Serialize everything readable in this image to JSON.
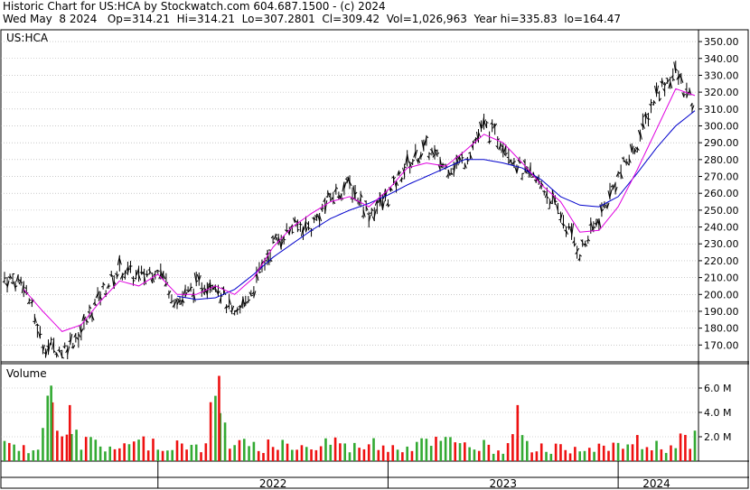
{
  "header": {
    "line1": "Historic Chart for US:HCA by Stockwatch.com 604.687.1500 - (c) 2024",
    "line2": "Wed May  8 2024   Op=314.21  Hi=314.21  Lo=307.2801  Cl=309.42  Vol=1,026,963  Year hi=335.83  lo=164.47"
  },
  "colors": {
    "price_bar": "#000000",
    "ma_short": "#e000e0",
    "ma_long": "#0000cc",
    "vol_up": "#33aa33",
    "vol_down": "#ee1111",
    "grid": "#aaaaaa"
  },
  "chart_data": [
    {
      "type": "line",
      "panel": "price",
      "label": "US:HCA",
      "y_ticks": [
        "170.00",
        "180.00",
        "190.00",
        "200.00",
        "210.00",
        "220.00",
        "230.00",
        "240.00",
        "250.00",
        "260.00",
        "270.00",
        "280.00",
        "290.00",
        "300.00",
        "310.00",
        "320.00",
        "330.00",
        "340.00",
        "350.00"
      ],
      "ylim": [
        160,
        357
      ],
      "x_labels": [
        "2022",
        "2023",
        "2024"
      ],
      "x_range": [
        "2021-05",
        "2024-05"
      ],
      "series": [
        {
          "style": "price-bars",
          "x": [
            "2021-05",
            "2021-06",
            "2021-07",
            "2021-08",
            "2021-09",
            "2021-10",
            "2021-11",
            "2021-12",
            "2022-01",
            "2022-02",
            "2022-03",
            "2022-04",
            "2022-05",
            "2022-06",
            "2022-07",
            "2022-08",
            "2022-09",
            "2022-10",
            "2022-11",
            "2022-12",
            "2023-01",
            "2023-02",
            "2023-03",
            "2023-04",
            "2023-05",
            "2023-06",
            "2023-07",
            "2023-08",
            "2023-09",
            "2023-10",
            "2023-11",
            "2023-12",
            "2024-01",
            "2024-02",
            "2024-03",
            "2024-04",
            "2024-05"
          ],
          "values": [
            210,
            207,
            170,
            167,
            178,
            200,
            215,
            210,
            216,
            195,
            205,
            208,
            185,
            205,
            230,
            240,
            240,
            258,
            265,
            248,
            258,
            277,
            287,
            275,
            280,
            300,
            290,
            273,
            265,
            247,
            225,
            245,
            270,
            290,
            320,
            332,
            309.42
          ]
        },
        {
          "style": "ma-short",
          "x": [
            "2021-06",
            "2021-07",
            "2021-08",
            "2021-09",
            "2021-10",
            "2021-11",
            "2021-12",
            "2022-01",
            "2022-02",
            "2022-03",
            "2022-04",
            "2022-05",
            "2022-06",
            "2022-07",
            "2022-08",
            "2022-09",
            "2022-10",
            "2022-11",
            "2022-12",
            "2023-01",
            "2023-02",
            "2023-03",
            "2023-04",
            "2023-05",
            "2023-06",
            "2023-07",
            "2023-08",
            "2023-09",
            "2023-10",
            "2023-11",
            "2023-12",
            "2024-01",
            "2024-02",
            "2024-03",
            "2024-04",
            "2024-05"
          ],
          "values": [
            203,
            190,
            178,
            182,
            196,
            208,
            205,
            212,
            200,
            200,
            205,
            200,
            210,
            228,
            240,
            248,
            255,
            258,
            252,
            262,
            275,
            278,
            276,
            285,
            295,
            290,
            278,
            265,
            255,
            237,
            238,
            252,
            274,
            298,
            322,
            318
          ]
        },
        {
          "style": "ma-long",
          "x": [
            "2022-02",
            "2022-03",
            "2022-04",
            "2022-05",
            "2022-06",
            "2022-07",
            "2022-08",
            "2022-09",
            "2022-10",
            "2022-11",
            "2022-12",
            "2023-01",
            "2023-02",
            "2023-03",
            "2023-04",
            "2023-05",
            "2023-06",
            "2023-07",
            "2023-08",
            "2023-09",
            "2023-10",
            "2023-11",
            "2023-12",
            "2024-01",
            "2024-02",
            "2024-03",
            "2024-04",
            "2024-05"
          ],
          "values": [
            199,
            197,
            198,
            203,
            212,
            222,
            230,
            238,
            245,
            250,
            254,
            259,
            265,
            270,
            275,
            280,
            280,
            278,
            275,
            268,
            258,
            253,
            252,
            258,
            272,
            287,
            300,
            309
          ]
        }
      ]
    },
    {
      "type": "bar",
      "panel": "volume",
      "label": "Volume",
      "y_ticks": [
        "2.0 M",
        "4.0 M",
        "6.0 M"
      ],
      "ylim": [
        0,
        8
      ],
      "x_range": [
        "2021-05",
        "2024-05"
      ],
      "values_millions": [
        2.0,
        1.6,
        6.2,
        4.6,
        2.3,
        1.9,
        2.0,
        2.5,
        1.9,
        2.4,
        1.7,
        7.0,
        2.1,
        1.8,
        2.2,
        2.0,
        1.7,
        2.6,
        1.8,
        2.3,
        2.1,
        1.9,
        3.0,
        2.5,
        2.0,
        2.2,
        1.7,
        4.6,
        1.9,
        1.6,
        1.8,
        2.0,
        1.7,
        2.4,
        2.0,
        1.9,
        2.8
      ]
    }
  ]
}
